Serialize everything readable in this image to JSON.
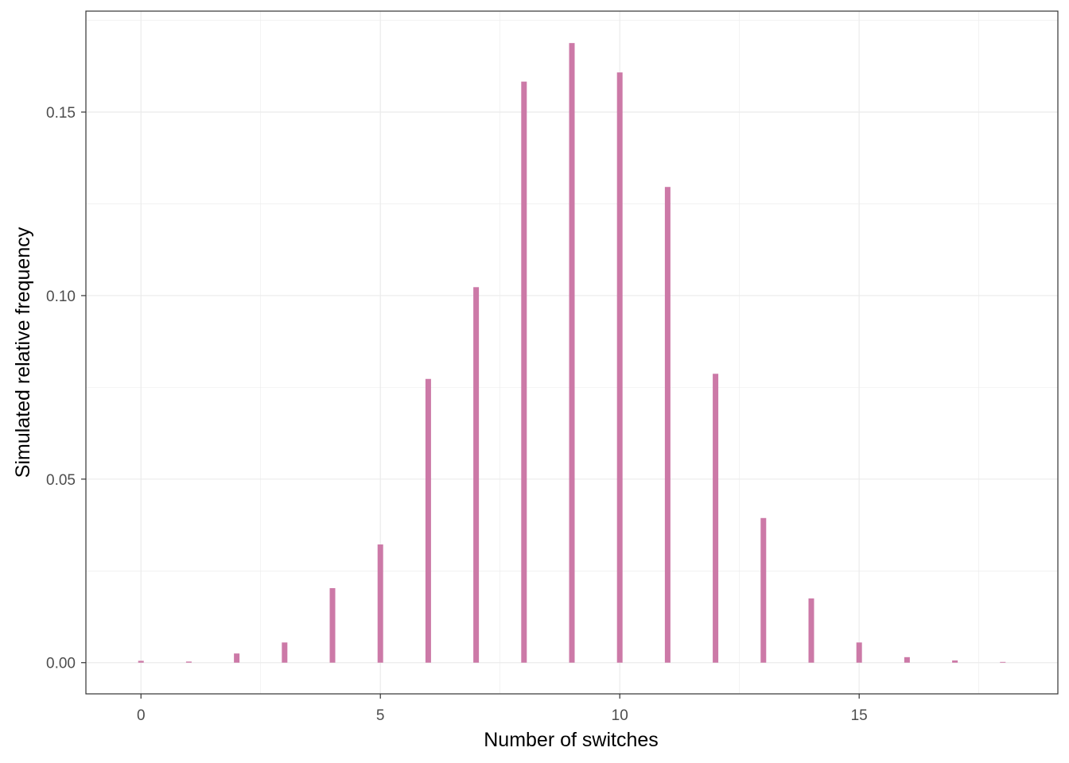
{
  "chart_data": {
    "type": "bar",
    "xlabel": "Number of switches",
    "ylabel": "Simulated relative frequency",
    "x": [
      0,
      1,
      2,
      3,
      4,
      5,
      6,
      7,
      8,
      9,
      10,
      11,
      12,
      13,
      14,
      15,
      16,
      17,
      18
    ],
    "values": [
      0.0005,
      0.0003,
      0.0025,
      0.0055,
      0.0203,
      0.0322,
      0.0773,
      0.1023,
      0.1583,
      0.1688,
      0.1608,
      0.1296,
      0.0787,
      0.0394,
      0.0175,
      0.0055,
      0.0015,
      0.0006,
      0.0002
    ],
    "xlim": [
      -1.15,
      19.15
    ],
    "ylim": [
      -0.0085,
      0.1775
    ],
    "x_ticks": [
      0,
      5,
      10,
      15
    ],
    "x_tick_labels": [
      "0",
      "5",
      "10",
      "15"
    ],
    "y_ticks": [
      0,
      0.05,
      0.1,
      0.15
    ],
    "y_tick_labels": [
      "0.00",
      "0.05",
      "0.10",
      "0.15"
    ],
    "grid": true,
    "legend": "none",
    "colors": {
      "bar": "#cc79a7",
      "grid": "#ebebeb",
      "panel_border": "#333333"
    }
  }
}
